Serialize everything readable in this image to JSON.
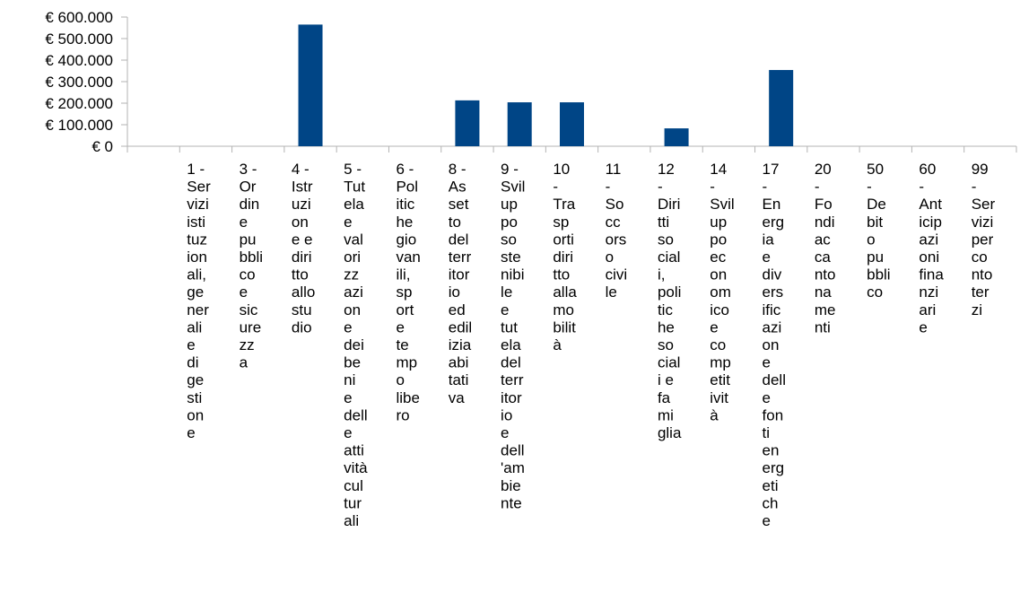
{
  "chart_data": {
    "type": "bar",
    "title": "",
    "xlabel": "",
    "ylabel": "",
    "ylim": [
      0,
      600000
    ],
    "y_ticks": [
      0,
      100000,
      200000,
      300000,
      400000,
      500000,
      600000
    ],
    "y_tick_labels": [
      "€ 0",
      "€ 100.000",
      "€ 200.000",
      "€ 300.000",
      "€ 400.000",
      "€ 500.000",
      "€ 600.000"
    ],
    "grid": false,
    "legend": "none",
    "bar_color": "#004586",
    "categories": [
      "",
      "1 - Servizi istituzionali, generali e di gestione",
      "3 - Ordine pubblico e sicurezza",
      "4 - Istruzione e diritto allo studio",
      "5 - Tutela e valorizzazione dei beni e delle attività culturali",
      "6 - Politiche giovanili, sport e tempo libero",
      "8 - Assetto del territorio ed edilizia abitativa",
      "9 - Sviluppo sostenibile e tutela del territorio e dell'ambiente",
      "10 - Trasporti diritto alla mobilità",
      "11 - Soccorso civile",
      "12 - Diritti sociali, politiche sociali e famiglia",
      "14 - Sviluppo economico e competitività",
      "17 - Energia e diversificazione delle fonti energetiche",
      "20 - Fondi accantonamenti",
      "50 - Debito pubblico",
      "60 - Anticipazioni finanziarie",
      "99 - Servizi per conto terzi"
    ],
    "category_label_lines": [
      [],
      [
        "1 -",
        "Ser",
        "vizi",
        "isti",
        "tuz",
        "ion",
        "ali,",
        "ge",
        "ner",
        "ali",
        "e",
        "di",
        "ge",
        "sti",
        "on",
        "e"
      ],
      [
        "3 -",
        "Or",
        "din",
        "e",
        "pu",
        "bbli",
        "co",
        "e",
        "sic",
        "ure",
        "zz",
        "a"
      ],
      [
        "4 -",
        "Istr",
        "uzi",
        "on",
        "e e",
        "diri",
        "tto",
        "allo",
        "stu",
        "dio"
      ],
      [
        "5 -",
        "Tut",
        "ela",
        "e",
        "val",
        "ori",
        "zz",
        "azi",
        "on",
        "e",
        "dei",
        "be",
        "ni",
        "e",
        "dell",
        "e",
        "atti",
        "vità",
        "cul",
        "tur",
        "ali"
      ],
      [
        "6 -",
        "Pol",
        "itic",
        "he",
        "gio",
        "van",
        "ili,",
        "sp",
        "ort",
        "e",
        "te",
        "mp",
        "o",
        "libe",
        "ro"
      ],
      [
        "8 -",
        "As",
        "set",
        "to",
        "del",
        "terr",
        "itor",
        "io",
        "ed",
        "edil",
        "izia",
        "abi",
        "tati",
        "va"
      ],
      [
        "9 -",
        "Svil",
        "up",
        "po",
        "so",
        "ste",
        "nibi",
        "le",
        "e",
        "tut",
        "ela",
        "del",
        "terr",
        "itor",
        "io",
        "e",
        "dell",
        "'am",
        "bie",
        "nte"
      ],
      [
        "10",
        "-",
        "Tra",
        "sp",
        "orti",
        "diri",
        "tto",
        "alla",
        "mo",
        "bilit",
        "à"
      ],
      [
        "11",
        "-",
        "So",
        "cc",
        "ors",
        "o",
        "civi",
        "le"
      ],
      [
        "12",
        "-",
        "Diri",
        "tti",
        "so",
        "cial",
        "i,",
        "poli",
        "tic",
        "he",
        "so",
        "cial",
        "i e",
        "fa",
        "mi",
        "glia"
      ],
      [
        "14",
        "-",
        "Svil",
        "up",
        "po",
        "ec",
        "on",
        "om",
        "ico",
        "e",
        "co",
        "mp",
        "etit",
        "ivit",
        "à"
      ],
      [
        "17",
        "-",
        "En",
        "erg",
        "ia",
        "e",
        "div",
        "ers",
        "ific",
        "azi",
        "on",
        "e",
        "dell",
        "e",
        "fon",
        "ti",
        "en",
        "erg",
        "eti",
        "ch",
        "e"
      ],
      [
        "20",
        "-",
        "Fo",
        "ndi",
        "ac",
        "ca",
        "nto",
        "na",
        "me",
        "nti"
      ],
      [
        "50",
        "-",
        "De",
        "bit",
        "o",
        "pu",
        "bbli",
        "co"
      ],
      [
        "60",
        "-",
        "Ant",
        "icip",
        "azi",
        "oni",
        "fina",
        "nzi",
        "ari",
        "e"
      ],
      [
        "99",
        "-",
        "Ser",
        "vizi",
        "per",
        "co",
        "nto",
        "ter",
        "zi"
      ]
    ],
    "values": [
      0,
      0,
      0,
      565000,
      0,
      0,
      213000,
      204000,
      204000,
      0,
      83000,
      0,
      354000,
      0,
      0,
      0,
      0
    ]
  }
}
